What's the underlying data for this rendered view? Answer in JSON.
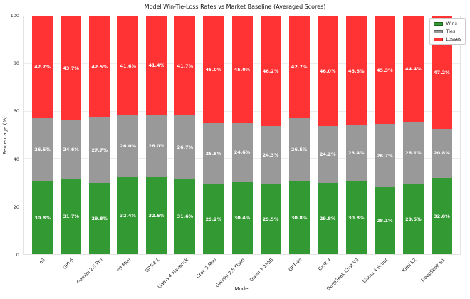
{
  "chart_data": {
    "type": "bar",
    "stacked": true,
    "title": "Model Win-Tie-Loss Rates vs Market Baseline (Averaged Scores)",
    "xlabel": "Model",
    "ylabel": "Percentage (%)",
    "ylim": [
      0,
      100
    ],
    "yticks": [
      0,
      20,
      40,
      60,
      80,
      100
    ],
    "grid": true,
    "legend_position": "upper right",
    "value_label_format": "one-decimal-percent",
    "categories": [
      "o3",
      "GPT-5",
      "Gemini 2.5 Pro",
      "o3 Mini",
      "GPT-4.1",
      "Llama 4 Maverick",
      "Grok 3 Mini",
      "Gemini 2.5 Flash",
      "Qwen 3 235B",
      "GPT-4o",
      "Grok 4",
      "DeepSeek Chat V3",
      "Llama 4 Scout",
      "Kimi K2",
      "DeepSeek R1"
    ],
    "series": [
      {
        "name": "Wins",
        "color": "#339933",
        "values": [
          30.8,
          31.7,
          29.8,
          32.4,
          32.6,
          31.6,
          29.2,
          30.4,
          29.5,
          30.8,
          29.8,
          30.8,
          28.1,
          29.5,
          32.0
        ]
      },
      {
        "name": "Ties",
        "color": "#999999",
        "values": [
          26.5,
          24.6,
          27.7,
          26.0,
          26.0,
          26.7,
          25.8,
          24.6,
          24.3,
          26.5,
          24.2,
          23.4,
          26.7,
          26.1,
          20.8
        ]
      },
      {
        "name": "Losses",
        "color": "#ff3333",
        "values": [
          42.7,
          43.7,
          42.5,
          41.6,
          41.4,
          41.7,
          45.0,
          45.0,
          46.2,
          42.7,
          46.0,
          45.8,
          45.3,
          44.4,
          47.2
        ]
      }
    ]
  }
}
